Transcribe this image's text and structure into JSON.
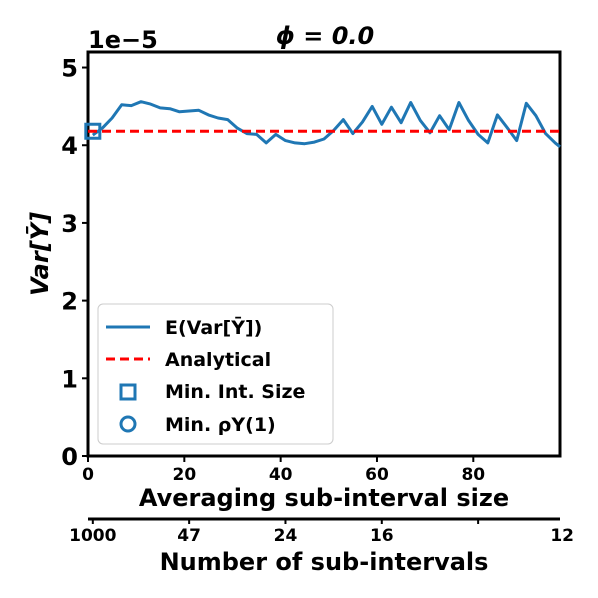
{
  "chart_data": {
    "type": "line",
    "title": "ϕ = 0.0",
    "offset_text": "1e−5",
    "xlabel": "Averaging sub-interval size",
    "ylabel": "Var[Ȳ]",
    "xlim": [
      0,
      98
    ],
    "ylim": [
      0,
      5.2
    ],
    "x_ticks": [
      0,
      20,
      40,
      60,
      80
    ],
    "x_tick_labels": [
      "0",
      "20",
      "40",
      "60",
      "80"
    ],
    "y_ticks": [
      0,
      1,
      2,
      3,
      4,
      5
    ],
    "y_tick_labels": [
      "0",
      "1",
      "2",
      "3",
      "4",
      "5"
    ],
    "secondary_x": {
      "label": "Number of sub-intervals",
      "ticks": [
        {
          "x": 1,
          "label": "1000"
        },
        {
          "x": 21,
          "label": "47"
        },
        {
          "x": 41,
          "label": "24"
        },
        {
          "x": 61,
          "label": "16"
        },
        {
          "x": 81,
          "label": "12"
        }
      ]
    },
    "series": [
      {
        "name": "E(Var[Ȳ])",
        "style": "line",
        "color": "#1f77b4",
        "x": [
          1,
          3,
          5,
          7,
          9,
          11,
          13,
          15,
          17,
          19,
          21,
          23,
          25,
          27,
          29,
          31,
          33,
          35,
          37,
          39,
          41,
          43,
          45,
          47,
          49,
          51,
          53,
          55,
          57,
          59,
          61,
          63,
          65,
          67,
          69,
          71,
          73,
          75,
          77,
          79,
          81,
          83,
          85,
          87,
          89,
          91,
          93,
          95,
          97,
          98
        ],
        "y": [
          4.13,
          4.22,
          4.35,
          4.52,
          4.51,
          4.56,
          4.53,
          4.48,
          4.47,
          4.43,
          4.44,
          4.45,
          4.39,
          4.35,
          4.33,
          4.22,
          4.15,
          4.14,
          4.03,
          4.14,
          4.06,
          4.03,
          4.02,
          4.04,
          4.08,
          4.19,
          4.33,
          4.15,
          4.3,
          4.5,
          4.27,
          4.49,
          4.29,
          4.55,
          4.32,
          4.16,
          4.38,
          4.2,
          4.55,
          4.32,
          4.14,
          4.03,
          4.39,
          4.23,
          4.06,
          4.54,
          4.38,
          4.15,
          4.03,
          3.98
        ]
      },
      {
        "name": "Analytical",
        "style": "dashed",
        "color": "#ff0000",
        "x": [
          0,
          98
        ],
        "y": [
          4.18,
          4.18
        ]
      },
      {
        "name": "Min. Int. Size",
        "style": "square-marker",
        "color": "#1f77b4",
        "x": [
          1
        ],
        "y": [
          4.18
        ]
      },
      {
        "name": "Min. ρY(1)",
        "style": "circle-marker",
        "color": "#1f77b4",
        "x": [],
        "y": []
      }
    ],
    "legend": {
      "placement": "lower-left",
      "entries": [
        {
          "label": "E(Var[Ȳ])"
        },
        {
          "label": "Analytical"
        },
        {
          "label": "Min. Int. Size"
        },
        {
          "label": "Min. ρY(1)"
        }
      ]
    }
  }
}
